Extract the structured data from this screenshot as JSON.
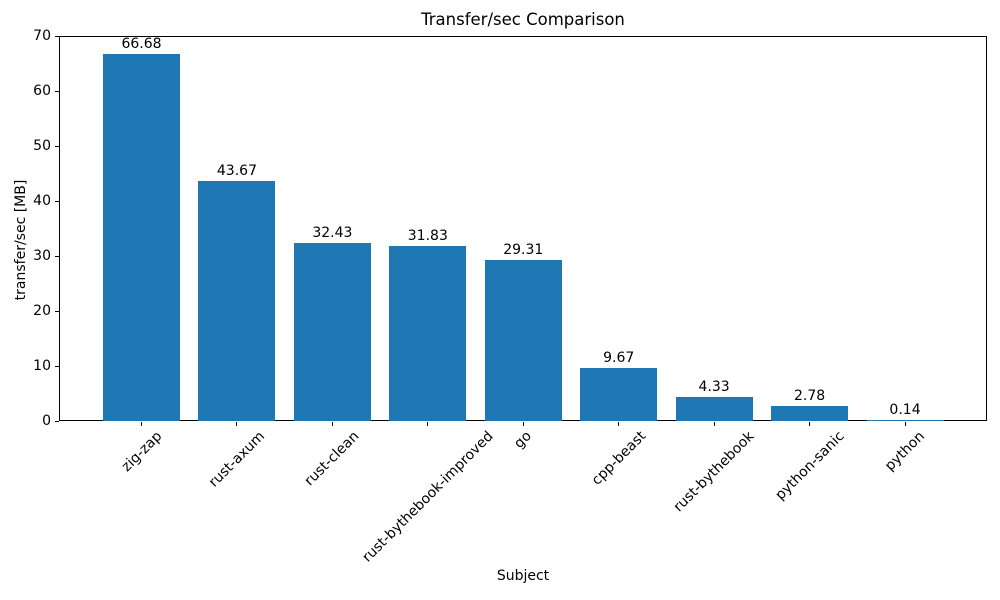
{
  "chart_data": {
    "type": "bar",
    "title": "Transfer/sec Comparison",
    "xlabel": "Subject",
    "ylabel": "transfer/sec [MB]",
    "categories": [
      "zig-zap",
      "rust-axum",
      "rust-clean",
      "rust-bythebook-improved",
      "go",
      "cpp-beast",
      "rust-bythebook",
      "python-sanic",
      "python"
    ],
    "values": [
      66.68,
      43.67,
      32.43,
      31.83,
      29.31,
      9.67,
      4.33,
      2.78,
      0.14
    ],
    "bar_value_labels": [
      "66.68",
      "43.67",
      "32.43",
      "31.83",
      "29.31",
      "9.67",
      "4.33",
      "2.78",
      "0.14"
    ],
    "ylim": [
      0,
      70
    ],
    "yticks": [
      0,
      10,
      20,
      30,
      40,
      50,
      60,
      70
    ],
    "x_tick_rotation_deg": 45,
    "bar_color": "#1f77b4",
    "text_color": "#000000",
    "background_color": "#ffffff",
    "grid": false,
    "legend": "none"
  }
}
